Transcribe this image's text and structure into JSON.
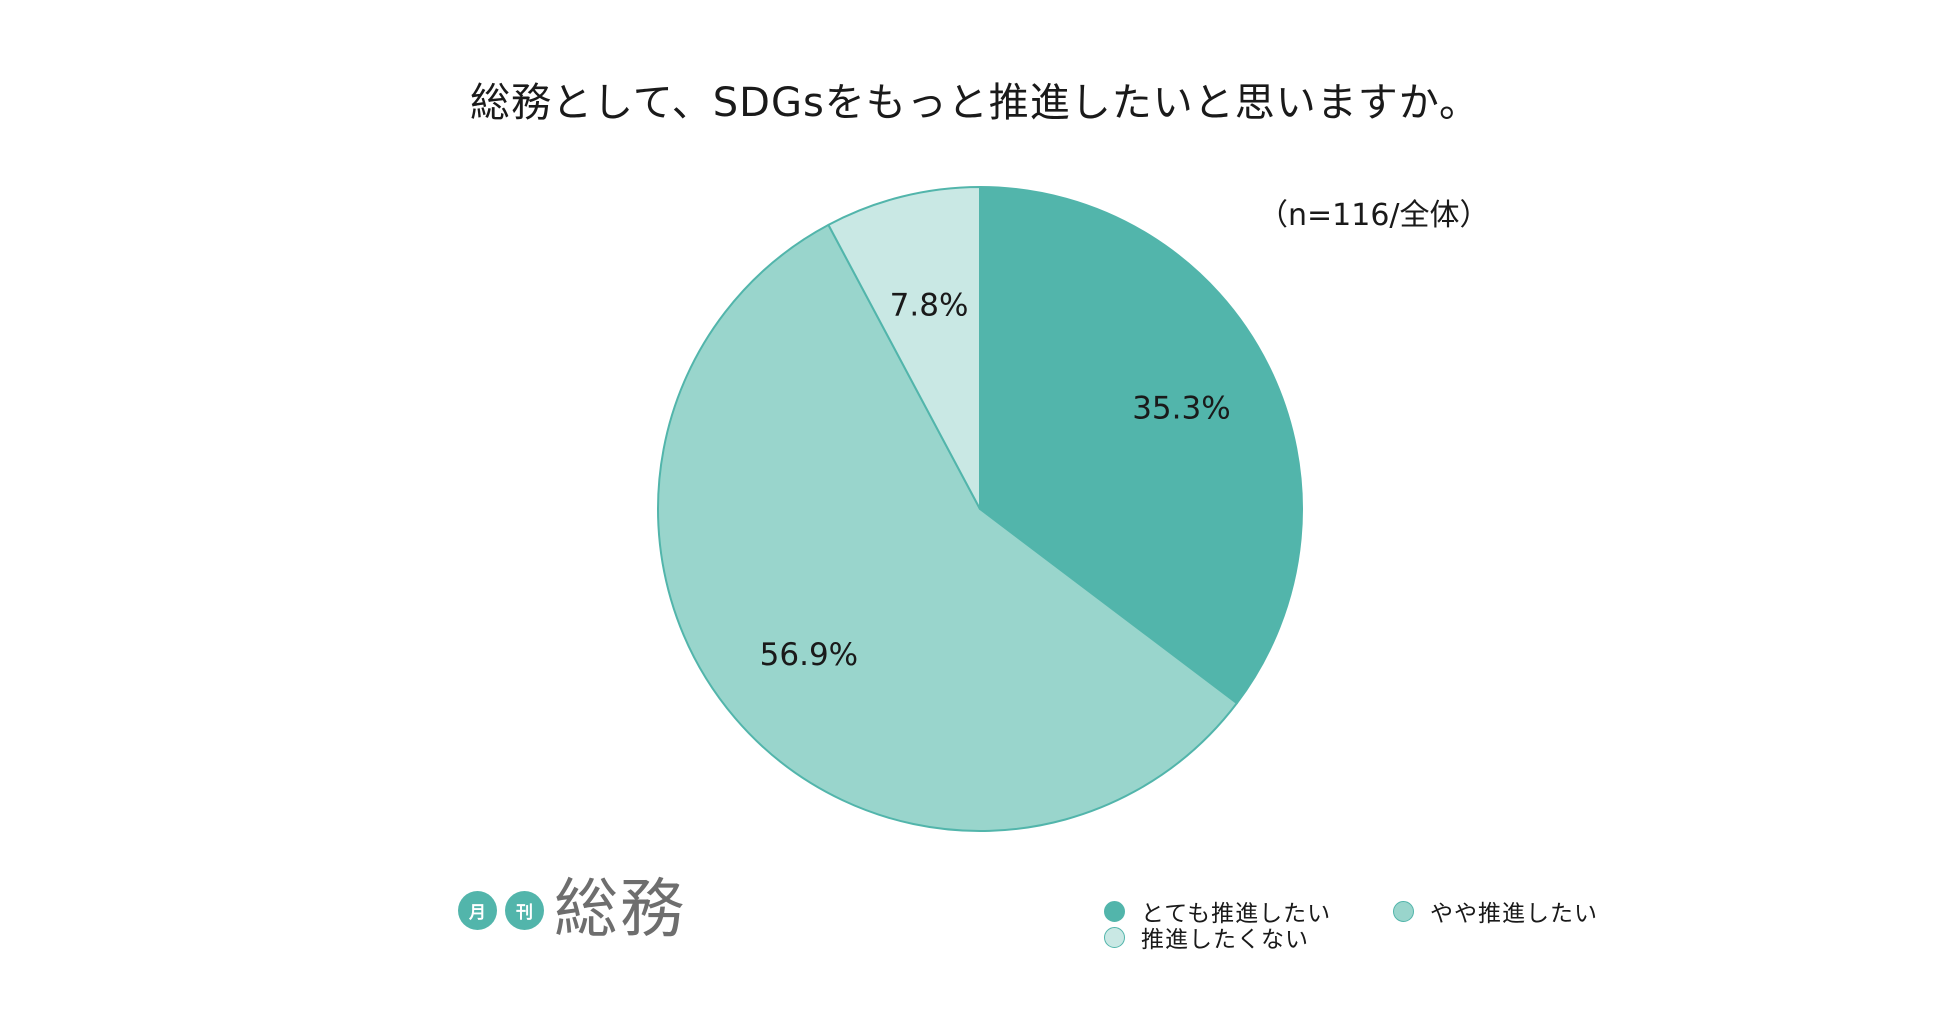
{
  "chart_data": {
    "type": "pie",
    "title": "総務として、SDGsをもっと推進したいと思いますか。",
    "note": "（n=116/全体）",
    "slices": [
      {
        "name": "とても推進したい",
        "value": 35.3,
        "label": "35.3%",
        "color": "#52b5ab"
      },
      {
        "name": "やや推進したい",
        "value": 56.9,
        "label": "56.9%",
        "color": "#99d5cc"
      },
      {
        "name": "推進したくない",
        "value": 7.8,
        "label": "7.8%",
        "color": "#c9e8e4"
      }
    ],
    "start_angle_deg": 0,
    "direction": "clockwise",
    "legend_position": "bottom-right",
    "stroke_color": "#52b5ab"
  },
  "logo": {
    "badge_1": "月",
    "badge_2": "刊",
    "text": "総務"
  }
}
